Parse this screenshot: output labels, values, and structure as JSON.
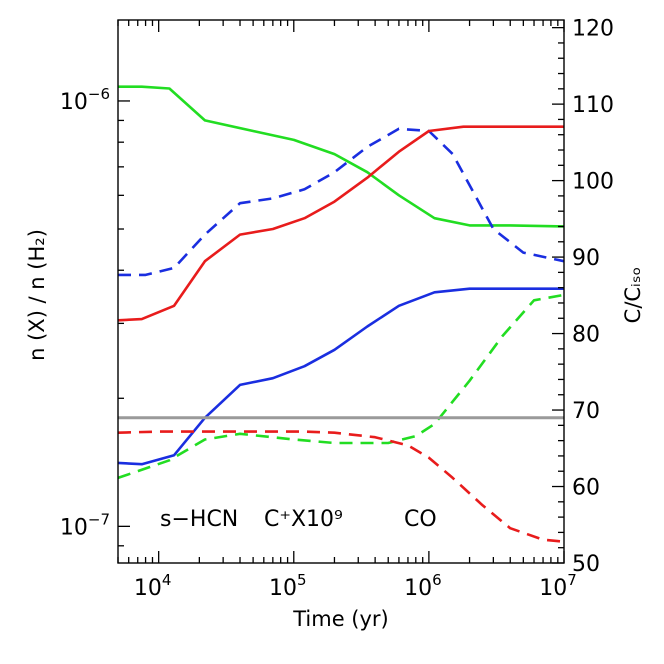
{
  "chart_data": {
    "type": "line",
    "xlabel": "Time (yr)",
    "ylabel_left": "n (X) / n (H₂)",
    "ylabel_right": "C/Cᵢₛₒ",
    "x_scale": "log",
    "xlim": [
      5000,
      10000000
    ],
    "y_left_scale": "log",
    "y_left_lim": [
      8.2e-08,
      1.55e-06
    ],
    "y_right_scale": "linear",
    "y_right_lim": [
      50,
      121
    ],
    "x_ticks": [
      {
        "value": 10000,
        "base": "10",
        "exp": "4"
      },
      {
        "value": 100000,
        "base": "10",
        "exp": "5"
      },
      {
        "value": 1000000,
        "base": "10",
        "exp": "6"
      },
      {
        "value": 10000000,
        "base": "10",
        "exp": "7"
      }
    ],
    "y_left_ticks": [
      {
        "value": 1e-06,
        "base": "10",
        "exp": "−6"
      },
      {
        "value": 1e-07,
        "base": "10",
        "exp": "−7"
      }
    ],
    "y_right_ticks": [
      50,
      60,
      70,
      80,
      90,
      100,
      110,
      120
    ],
    "colors": {
      "green": "#22dd22",
      "blue": "#1a2ee0",
      "red": "#e81c1c",
      "gray": "#9a9a9a"
    },
    "legend": [
      {
        "text": "s−HCN",
        "color": "#22dd22"
      },
      {
        "text": "C⁺X10⁹",
        "color": "#1a2ee0"
      },
      {
        "text": "CO",
        "color": "#e81c1c"
      }
    ],
    "series": [
      {
        "color": "#22dd22",
        "style": "solid",
        "axis": "left",
        "x": [
          5000,
          7500,
          12000,
          22000,
          50000,
          100000,
          200000,
          350000,
          600000,
          1100000,
          2000000,
          4000000,
          10000000
        ],
        "y": [
          1.08e-06,
          1.08e-06,
          1.07e-06,
          9e-07,
          8.5e-07,
          8.1e-07,
          7.5e-07,
          6.8e-07,
          6e-07,
          5.3e-07,
          5.1e-07,
          5.1e-07,
          5.07e-07
        ]
      },
      {
        "color": "#22dd22",
        "style": "dashed",
        "axis": "left",
        "x": [
          5000,
          12000,
          22000,
          40000,
          100000,
          200000,
          500000,
          800000,
          1100000,
          2000000,
          3500000,
          6000000,
          10000000
        ],
        "y": [
          1.3e-07,
          1.43e-07,
          1.6e-07,
          1.65e-07,
          1.6e-07,
          1.57e-07,
          1.57e-07,
          1.63e-07,
          1.74e-07,
          2.2e-07,
          2.8e-07,
          3.4e-07,
          3.5e-07
        ]
      },
      {
        "color": "#1a2ee0",
        "style": "solid",
        "axis": "left",
        "x": [
          5000,
          7500,
          13000,
          22000,
          40000,
          70000,
          120000,
          200000,
          350000,
          600000,
          1100000,
          2000000,
          10000000
        ],
        "y": [
          1.41e-07,
          1.4e-07,
          1.47e-07,
          1.8e-07,
          2.15e-07,
          2.23e-07,
          2.38e-07,
          2.6e-07,
          2.95e-07,
          3.3e-07,
          3.55e-07,
          3.62e-07,
          3.62e-07
        ]
      },
      {
        "color": "#1a2ee0",
        "style": "dashed",
        "axis": "left",
        "x": [
          5000,
          8000,
          13000,
          22000,
          40000,
          70000,
          120000,
          200000,
          350000,
          600000,
          1000000,
          1500000,
          3000000,
          5000000,
          10000000
        ],
        "y": [
          3.9e-07,
          3.9e-07,
          4.05e-07,
          4.85e-07,
          5.75e-07,
          5.9e-07,
          6.2e-07,
          6.8e-07,
          7.8e-07,
          8.6e-07,
          8.5e-07,
          7.5e-07,
          5e-07,
          4.4e-07,
          4.2e-07
        ]
      },
      {
        "color": "#e81c1c",
        "style": "solid",
        "axis": "left",
        "x": [
          5000,
          7500,
          13000,
          22000,
          40000,
          70000,
          120000,
          200000,
          350000,
          600000,
          1000000,
          1800000,
          10000000
        ],
        "y": [
          3.05e-07,
          3.07e-07,
          3.3e-07,
          4.2e-07,
          4.85e-07,
          5e-07,
          5.3e-07,
          5.8e-07,
          6.6e-07,
          7.6e-07,
          8.5e-07,
          8.7e-07,
          8.7e-07
        ]
      },
      {
        "color": "#e81c1c",
        "style": "dashed",
        "axis": "left",
        "x": [
          5000,
          10000,
          20000,
          50000,
          120000,
          200000,
          400000,
          700000,
          1000000,
          1500000,
          2500000,
          4000000,
          7000000,
          10000000
        ],
        "y": [
          1.66e-07,
          1.67e-07,
          1.67e-07,
          1.67e-07,
          1.67e-07,
          1.66e-07,
          1.62e-07,
          1.55e-07,
          1.45e-07,
          1.3e-07,
          1.12e-07,
          9.9e-08,
          9.3e-08,
          9.2e-08
        ]
      },
      {
        "color": "#9a9a9a",
        "style": "solid",
        "axis": "right",
        "x": [
          5000,
          10000000
        ],
        "y": [
          69,
          69
        ]
      }
    ]
  }
}
